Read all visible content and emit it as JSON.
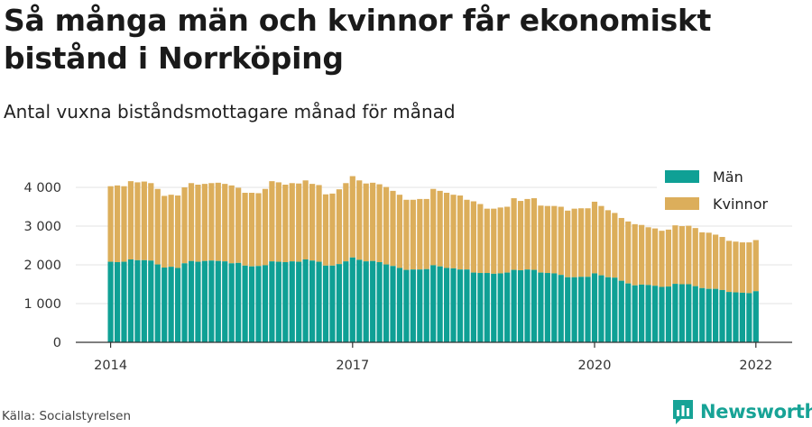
{
  "header": {
    "title": "Så många män och kvinnor får ekonomiskt bistånd i Norrköping",
    "subtitle": "Antal vuxna biståndsmottagare månad för månad"
  },
  "footer": {
    "source": "Källa: Socialstyrelsen",
    "brand": "Newsworthy"
  },
  "colors": {
    "men": "#0fa095",
    "women": "#dcae5b",
    "grid": "#e3e3e3",
    "axis": "#333333",
    "brand": "#17a396"
  },
  "icons": {
    "brand": "newsworthy-logo-icon"
  },
  "chart_data": {
    "type": "bar",
    "stacked": true,
    "x_tick_labels": [
      "2014",
      "2017",
      "2020",
      "2022"
    ],
    "y_tick_labels": [
      "0",
      "1 000",
      "2 000",
      "3 000",
      "4 000"
    ],
    "ylim": [
      0,
      4400
    ],
    "grid": "horizontal",
    "legend_position": "top-right",
    "series": [
      {
        "name": "Män",
        "values": [
          2080,
          2070,
          2080,
          2140,
          2120,
          2120,
          2110,
          2010,
          1930,
          1950,
          1920,
          2040,
          2100,
          2080,
          2100,
          2110,
          2100,
          2090,
          2040,
          2050,
          1980,
          1960,
          1970,
          1990,
          2090,
          2080,
          2070,
          2090,
          2080,
          2140,
          2110,
          2080,
          1980,
          1980,
          2020,
          2090,
          2190,
          2130,
          2090,
          2100,
          2070,
          2010,
          1970,
          1920,
          1870,
          1880,
          1880,
          1890,
          1990,
          1960,
          1920,
          1910,
          1880,
          1880,
          1800,
          1790,
          1790,
          1770,
          1780,
          1800,
          1870,
          1860,
          1880,
          1870,
          1800,
          1790,
          1780,
          1740,
          1680,
          1680,
          1690,
          1690,
          1780,
          1730,
          1680,
          1670,
          1590,
          1520,
          1470,
          1490,
          1480,
          1460,
          1430,
          1440,
          1510,
          1500,
          1500,
          1450,
          1400,
          1380,
          1380,
          1350,
          1300,
          1290,
          1280,
          1270,
          1320
        ],
        "totals": [
          4030,
          4050,
          4030,
          4160,
          4130,
          4150,
          4110,
          3960,
          3780,
          3810,
          3790,
          4000,
          4110,
          4070,
          4090,
          4110,
          4120,
          4090,
          4050,
          3990,
          3860,
          3860,
          3850,
          3960,
          4160,
          4130,
          4070,
          4110,
          4100,
          4180,
          4090,
          4060,
          3820,
          3840,
          3950,
          4110,
          4290,
          4180,
          4100,
          4120,
          4080,
          4010,
          3910,
          3810,
          3680,
          3680,
          3700,
          3700,
          3960,
          3910,
          3860,
          3810,
          3790,
          3680,
          3640,
          3570,
          3450,
          3450,
          3480,
          3500,
          3720,
          3650,
          3700,
          3720,
          3530,
          3520,
          3520,
          3500,
          3400,
          3450,
          3460,
          3460,
          3630,
          3520,
          3410,
          3340,
          3210,
          3120,
          3050,
          3030,
          2970,
          2940,
          2880,
          2910,
          3020,
          3000,
          3010,
          2950,
          2840,
          2830,
          2780,
          2720,
          2620,
          2600,
          2580,
          2580,
          2640
        ]
      },
      {
        "name": "Kvinnor",
        "values": [
          1950,
          1980,
          1950,
          2020,
          2010,
          2030,
          2000,
          1950,
          1850,
          1860,
          1870,
          1960,
          2010,
          1990,
          1990,
          2000,
          2020,
          2000,
          2010,
          1940,
          1880,
          1900,
          1880,
          1970,
          2070,
          2050,
          2000,
          2020,
          2020,
          2040,
          1980,
          1980,
          1840,
          1860,
          1930,
          2020,
          2100,
          2050,
          2010,
          2020,
          2010,
          2000,
          1940,
          1890,
          1810,
          1800,
          1820,
          1810,
          1970,
          1950,
          1940,
          1900,
          1910,
          1800,
          1840,
          1780,
          1660,
          1680,
          1700,
          1700,
          1850,
          1790,
          1820,
          1850,
          1730,
          1730,
          1740,
          1760,
          1720,
          1770,
          1770,
          1770,
          1850,
          1790,
          1730,
          1670,
          1620,
          1600,
          1580,
          1540,
          1490,
          1480,
          1450,
          1470,
          1510,
          1500,
          1510,
          1500,
          1440,
          1450,
          1400,
          1370,
          1320,
          1310,
          1300,
          1310,
          1320
        ]
      }
    ]
  }
}
